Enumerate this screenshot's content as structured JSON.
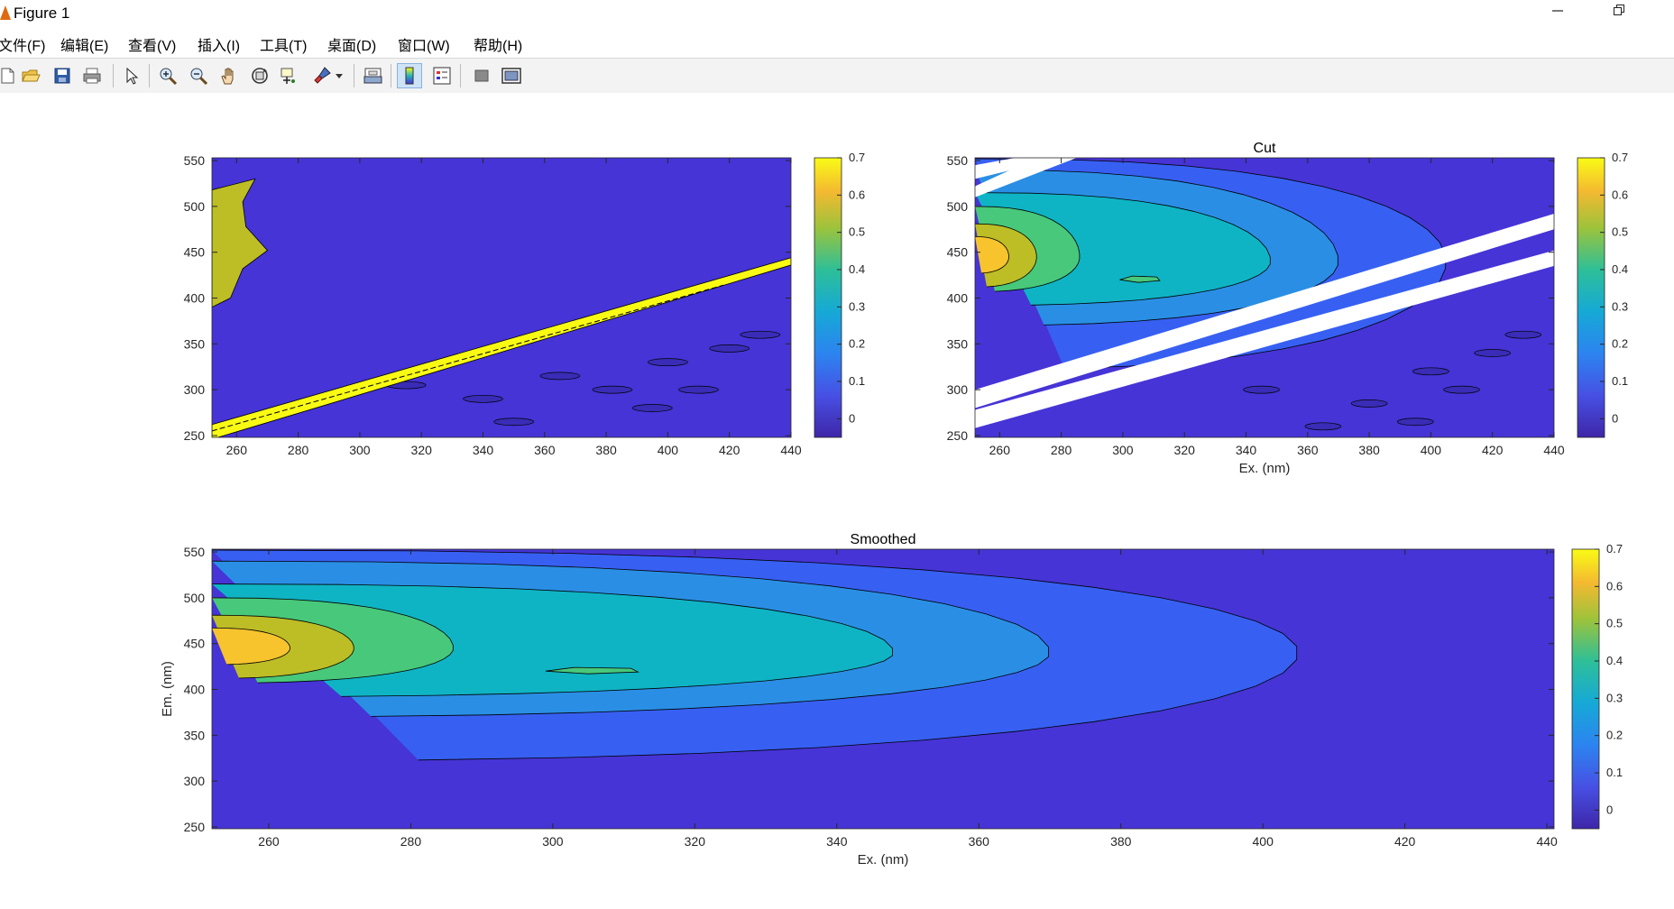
{
  "window": {
    "title": "Figure 1",
    "minimize_icon": "minimize-icon",
    "restore_icon": "restore-icon"
  },
  "menu": [
    {
      "label": "文件(F)"
    },
    {
      "label": "编辑(E)"
    },
    {
      "label": "查看(V)"
    },
    {
      "label": "插入(I)"
    },
    {
      "label": "工具(T)"
    },
    {
      "label": "桌面(D)"
    },
    {
      "label": "窗口(W)"
    },
    {
      "label": "帮助(H)"
    }
  ],
  "toolbar": [
    {
      "icon": "new-figure-icon"
    },
    {
      "icon": "open-file-icon"
    },
    {
      "icon": "save-icon"
    },
    {
      "icon": "print-icon"
    },
    {
      "icon": "select-arrow-icon"
    },
    {
      "icon": "zoom-in-icon"
    },
    {
      "icon": "zoom-out-icon"
    },
    {
      "icon": "pan-hand-icon"
    },
    {
      "icon": "rotate-3d-icon"
    },
    {
      "icon": "data-cursor-icon"
    },
    {
      "icon": "brush-icon"
    },
    {
      "icon": "brush-dropdown-icon"
    },
    {
      "icon": "link-plot-icon"
    },
    {
      "icon": "colorbar-icon"
    },
    {
      "icon": "legend-icon"
    },
    {
      "icon": "hide-plot-tools-icon"
    },
    {
      "icon": "show-plot-tools-icon"
    }
  ],
  "colors": {
    "low": "#4634d6",
    "level_01": "#3760f2",
    "level_02": "#2a8fe4",
    "level_03": "#0fb4c4",
    "level_04": "#48c87a",
    "level_05": "#bdbd26",
    "level_06": "#f7c42e",
    "high": "#f9fa14",
    "cut_gap": "#ffffff"
  },
  "chart_data": [
    {
      "type": "heatmap",
      "title": "",
      "xlabel": "",
      "ylabel": "",
      "x_ticks": [
        260,
        280,
        300,
        320,
        340,
        360,
        380,
        400,
        420,
        440
      ],
      "y_ticks": [
        250,
        300,
        350,
        400,
        450,
        500,
        550
      ],
      "xlim": [
        252,
        440
      ],
      "ylim": [
        248,
        553
      ],
      "colorbar": {
        "ticks": [
          0,
          0.1,
          0.2,
          0.3,
          0.4,
          0.5,
          0.6,
          0.7
        ],
        "range": [
          -0.05,
          0.7
        ]
      },
      "features": [
        {
          "kind": "scatter-band",
          "level": 0.7,
          "ex_from": 252,
          "em_from": 252,
          "ex_to": 440,
          "em_to": 442
        },
        {
          "kind": "fluorescence-peak",
          "level": 0.5,
          "ex": 252,
          "em_range": [
            390,
            530
          ]
        }
      ]
    },
    {
      "type": "heatmap",
      "title": "Cut",
      "xlabel": "Ex. (nm)",
      "ylabel": "",
      "x_ticks": [
        260,
        280,
        300,
        320,
        340,
        360,
        380,
        400,
        420,
        440
      ],
      "y_ticks": [
        250,
        300,
        350,
        400,
        450,
        500,
        550
      ],
      "xlim": [
        252,
        440
      ],
      "ylim": [
        248,
        553
      ],
      "colorbar": {
        "ticks": [
          0,
          0.1,
          0.2,
          0.3,
          0.4,
          0.5,
          0.6,
          0.7
        ],
        "range": [
          -0.05,
          0.7
        ]
      },
      "contour_levels": [
        0.1,
        0.2,
        0.3,
        0.4,
        0.5,
        0.6
      ],
      "peak": {
        "ex": 252,
        "em": 445,
        "value": 0.62
      },
      "secondary_peak": {
        "ex": 305,
        "em": 420,
        "value": 0.4
      }
    },
    {
      "type": "heatmap",
      "title": "Smoothed",
      "xlabel": "Ex. (nm)",
      "ylabel": "Em. (nm)",
      "x_ticks": [
        260,
        280,
        300,
        320,
        340,
        360,
        380,
        400,
        420,
        440
      ],
      "y_ticks": [
        250,
        300,
        350,
        400,
        450,
        500,
        550
      ],
      "xlim": [
        252,
        441
      ],
      "ylim": [
        248,
        553
      ],
      "colorbar": {
        "ticks": [
          0,
          0.1,
          0.2,
          0.3,
          0.4,
          0.5,
          0.6,
          0.7
        ],
        "range": [
          -0.05,
          0.7
        ]
      },
      "contour_levels": [
        0.1,
        0.2,
        0.3,
        0.4,
        0.5,
        0.6
      ],
      "peak": {
        "ex": 252,
        "em": 445,
        "value": 0.62
      },
      "secondary_peak": {
        "ex": 305,
        "em": 420,
        "value": 0.4
      }
    }
  ]
}
